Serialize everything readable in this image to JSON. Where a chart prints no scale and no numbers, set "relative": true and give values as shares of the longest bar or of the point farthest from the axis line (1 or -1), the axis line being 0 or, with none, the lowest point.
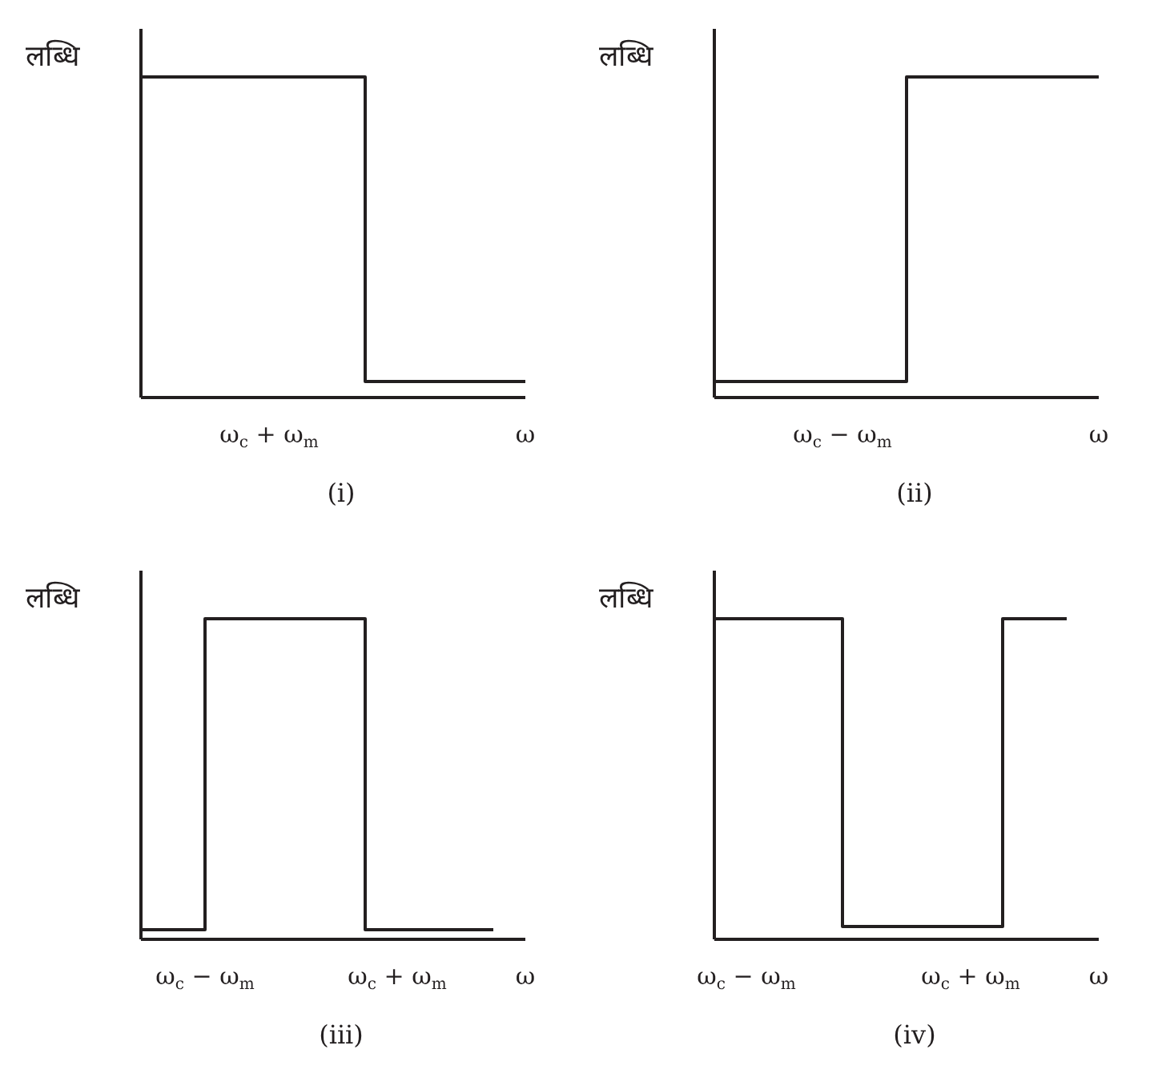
{
  "chart_data": [
    {
      "type": "step",
      "title": "(i)",
      "ylabel": "लब्धि",
      "relative": true,
      "color": "#231f20",
      "categories": [
        null,
        null,
        null,
        null,
        "ω$_{c}$ + ω$_{m}$",
        null,
        null,
        null,
        null,
        null,
        null,
        null,
        "ω"
      ],
      "values": [
        1,
        1,
        1,
        1,
        1,
        1,
        1,
        0.05,
        0.05,
        0.05,
        0.05,
        0.05,
        0.05
      ]
    },
    {
      "type": "step",
      "title": "(ii)",
      "ylabel": "लब्धि",
      "relative": true,
      "color": "#231f20",
      "categories": [
        null,
        null,
        null,
        null,
        "ω$_{c}$ − ω$_{m}$",
        null,
        null,
        null,
        null,
        null,
        null,
        null,
        "ω"
      ],
      "values": [
        0.05,
        0.05,
        0.05,
        0.05,
        0.05,
        0.05,
        1,
        1,
        1,
        1,
        1,
        1,
        1
      ]
    },
    {
      "type": "step",
      "title": "(iii)",
      "ylabel": "लब्धि",
      "relative": true,
      "color": "#231f20",
      "categories": [
        null,
        null,
        "ω$_{c}$ − ω$_{m}$",
        null,
        null,
        null,
        null,
        null,
        "ω$_{c}$ + ω$_{m}$",
        null,
        null,
        null,
        "ω"
      ],
      "values": [
        0.03,
        0.03,
        1,
        1,
        1,
        1,
        1,
        0.03,
        0.03,
        0.03,
        0.03,
        0.03,
        null
      ]
    },
    {
      "type": "step",
      "title": "(iv)",
      "ylabel": "लब्धि",
      "relative": true,
      "color": "#231f20",
      "categories": [
        null,
        "ω$_{c}$ − ω$_{m}$",
        null,
        null,
        null,
        null,
        null,
        null,
        "ω$_{c}$ + ω$_{m}$",
        null,
        null,
        null,
        "ω"
      ],
      "values": [
        1,
        1,
        1,
        1,
        0.04,
        0.04,
        0.04,
        0.04,
        0.04,
        1,
        1,
        1,
        null
      ]
    }
  ]
}
